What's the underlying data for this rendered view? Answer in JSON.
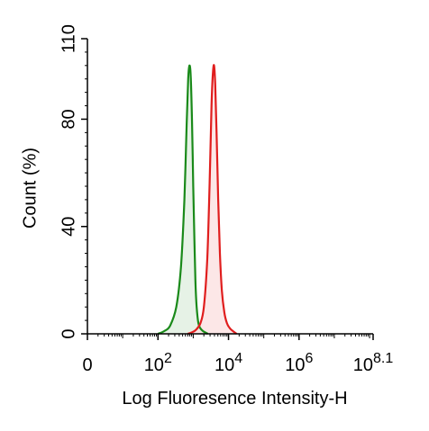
{
  "chart_data": {
    "type": "area",
    "xlabel": "Log Fluoresence Intensity-H",
    "ylabel": "Count  (%)",
    "x_scale": "log",
    "xlim": [
      1,
      125892541
    ],
    "ylim": [
      0,
      110
    ],
    "y_ticks": [
      {
        "value": 0,
        "label": "0"
      },
      {
        "value": 40,
        "label": "40"
      },
      {
        "value": 80,
        "label": "80"
      },
      {
        "value": 110,
        "label": "110"
      }
    ],
    "x_ticks": [
      {
        "value": 1,
        "base": "0",
        "exp": ""
      },
      {
        "value": 100,
        "base": "10",
        "exp": "2"
      },
      {
        "value": 10000,
        "base": "10",
        "exp": "4"
      },
      {
        "value": 1000000,
        "base": "10",
        "exp": "6"
      },
      {
        "value": 125892541,
        "base": "10",
        "exp": "8.1"
      }
    ],
    "series": [
      {
        "color": "#1a8a1a",
        "fill": "#e2f0e2",
        "x": [
          100,
          150,
          220,
          330,
          450,
          560,
          650,
          720,
          780,
          850,
          920,
          1000,
          1080,
          1150,
          1250,
          1400,
          1600,
          1900,
          2200,
          2600
        ],
        "y": [
          0,
          1,
          3,
          10,
          25,
          50,
          78,
          95,
          100,
          96,
          80,
          55,
          35,
          20,
          10,
          4,
          2,
          1,
          0.5,
          0
        ]
      },
      {
        "color": "#e01e1e",
        "fill": "#fbe3e3",
        "x": [
          700,
          900,
          1200,
          1600,
          2000,
          2500,
          2900,
          3300,
          3600,
          3900,
          4200,
          4600,
          5100,
          5700,
          6500,
          7600,
          9000,
          11000,
          14000,
          17000
        ],
        "y": [
          0,
          0.5,
          1.5,
          4,
          10,
          28,
          55,
          85,
          97,
          100,
          93,
          75,
          50,
          30,
          16,
          8,
          4,
          2,
          0.8,
          0
        ]
      }
    ]
  }
}
